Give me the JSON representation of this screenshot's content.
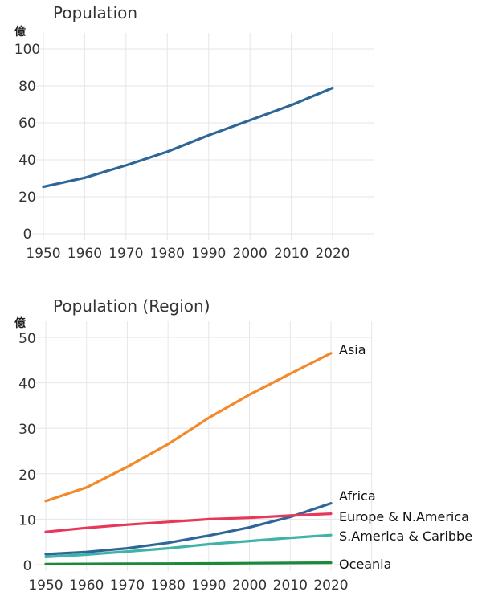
{
  "chart_data": [
    {
      "type": "line",
      "title": "Population",
      "ylabel": "億",
      "xlabel": "",
      "ylim": [
        0,
        100
      ],
      "yticks": [
        0,
        20,
        40,
        60,
        80,
        100
      ],
      "x": [
        1950,
        1960,
        1970,
        1980,
        1990,
        2000,
        2010,
        2020
      ],
      "grid": true,
      "series": [
        {
          "values": [
            25.4,
            30.3,
            37.0,
            44.4,
            53.3,
            61.4,
            69.6,
            78.9
          ],
          "color": "#2e6697"
        }
      ]
    },
    {
      "type": "line",
      "title": "Population (Region)",
      "ylabel": "億",
      "xlabel": "",
      "ylim": [
        0,
        50
      ],
      "yticks": [
        0,
        10,
        20,
        30,
        40,
        50
      ],
      "x": [
        1950,
        1960,
        1970,
        1980,
        1990,
        2000,
        2010,
        2020
      ],
      "grid": true,
      "series": [
        {
          "name": "Asia",
          "values": [
            14.0,
            17.0,
            21.5,
            26.5,
            32.3,
            37.4,
            42.0,
            46.5
          ],
          "color": "#f28a2b"
        },
        {
          "name": "Africa",
          "values": [
            2.3,
            2.8,
            3.6,
            4.8,
            6.4,
            8.2,
            10.5,
            13.5
          ],
          "color": "#2e6697"
        },
        {
          "name": "Europe & N.America",
          "values": [
            7.2,
            8.1,
            8.8,
            9.4,
            10.0,
            10.3,
            10.8,
            11.2
          ],
          "color": "#e8385a"
        },
        {
          "name": "S.America & Caribbe",
          "values": [
            1.7,
            2.2,
            2.9,
            3.6,
            4.5,
            5.2,
            5.9,
            6.5
          ],
          "color": "#3fb4a6"
        },
        {
          "name": "Oceania",
          "values": [
            0.13,
            0.16,
            0.2,
            0.23,
            0.27,
            0.31,
            0.37,
            0.43
          ],
          "color": "#1a8a3a"
        }
      ]
    }
  ]
}
